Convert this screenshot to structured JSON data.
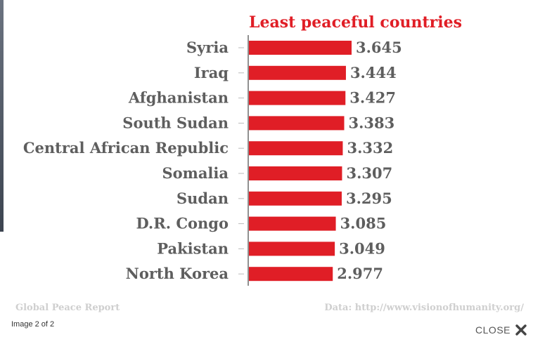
{
  "viewer": {
    "image_counter": "Image 2 of 2",
    "close_label": "CLOSE"
  },
  "footer": {
    "source_left": "Global Peace Report",
    "source_right": "Data: http://www.visionofhumanity.org/"
  },
  "colors": {
    "bar": "#e01e26",
    "title": "#e01e26",
    "label": "#5e5e5e"
  },
  "icons": {
    "close": "close-icon"
  },
  "chart_data": {
    "type": "bar",
    "orientation": "horizontal",
    "title": "Least peaceful countries",
    "categories": [
      "Syria",
      "Iraq",
      "Afghanistan",
      "South Sudan",
      "Central African Republic",
      "Somalia",
      "Sudan",
      "D.R. Congo",
      "Pakistan",
      "North Korea"
    ],
    "values": [
      3.645,
      3.444,
      3.427,
      3.383,
      3.332,
      3.307,
      3.295,
      3.085,
      3.049,
      2.977
    ],
    "value_labels": [
      "3.645",
      "3.444",
      "3.427",
      "3.383",
      "3.332",
      "3.307",
      "3.295",
      "3.085",
      "3.049",
      "2.977"
    ],
    "xlabel": "",
    "ylabel": "",
    "grid": false,
    "legend": "none"
  }
}
